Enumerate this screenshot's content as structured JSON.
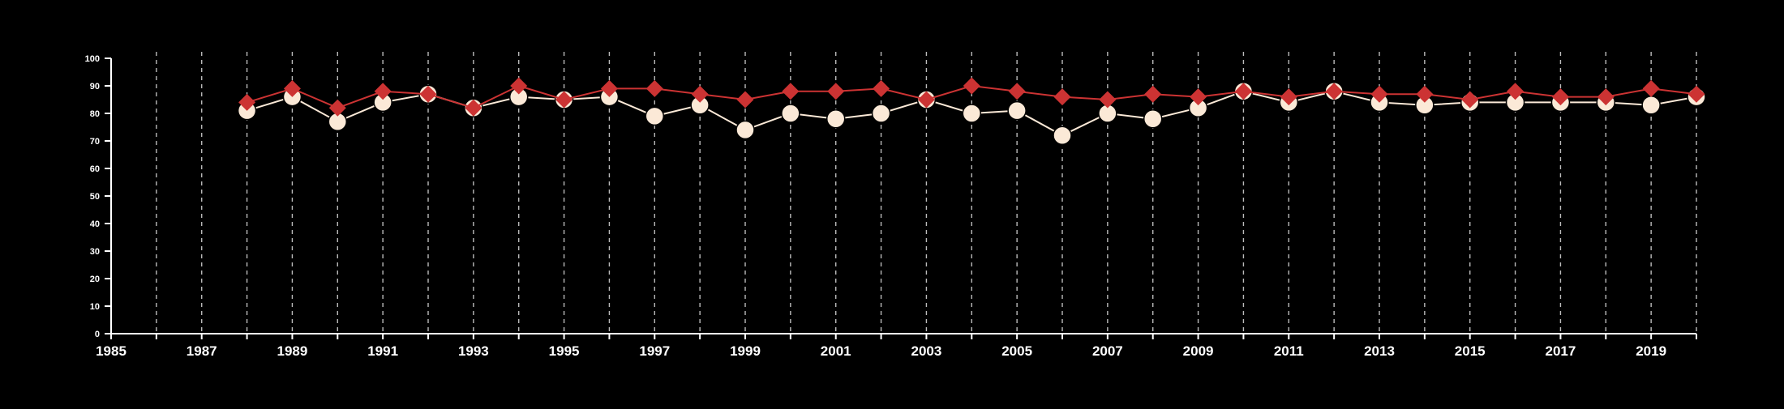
{
  "colors": {
    "background": "#000000",
    "axis": "#ffffff",
    "grid": "#bbbbbb",
    "series_a": "#cc3333",
    "series_b": "#fbe9d7"
  },
  "chart_data": {
    "type": "line",
    "grid": "vertical dashed",
    "xlim": [
      1985,
      2020
    ],
    "ylim": [
      0,
      100
    ],
    "x_ticks": [
      1985,
      1986,
      1987,
      1988,
      1989,
      1990,
      1991,
      1992,
      1993,
      1994,
      1995,
      1996,
      1997,
      1998,
      1999,
      2000,
      2001,
      2002,
      2003,
      2004,
      2005,
      2006,
      2007,
      2008,
      2009,
      2010,
      2011,
      2012,
      2013,
      2014,
      2015,
      2016,
      2017,
      2018,
      2019,
      2020
    ],
    "x_tick_labels": [
      "1985",
      "1987",
      "1989",
      "1991",
      "1993",
      "1995",
      "1997",
      "1999",
      "2001",
      "2003",
      "2005",
      "2007",
      "2009",
      "2011",
      "2013",
      "2015",
      "2017",
      "2019"
    ],
    "y_ticks": [
      0,
      10,
      20,
      30,
      40,
      50,
      60,
      70,
      80,
      90,
      100
    ],
    "y_tick_labels": [
      "0",
      "10",
      "20",
      "30",
      "40",
      "50",
      "60",
      "70",
      "80",
      "90",
      "100"
    ],
    "x": [
      1988,
      1989,
      1990,
      1991,
      1992,
      1993,
      1994,
      1995,
      1996,
      1997,
      1998,
      1999,
      2000,
      2001,
      2002,
      2003,
      2004,
      2005,
      2006,
      2007,
      2008,
      2009,
      2010,
      2011,
      2012,
      2013,
      2014,
      2015,
      2016,
      2017,
      2018,
      2019,
      2020
    ],
    "series": [
      {
        "marker": "diamond",
        "color": "#cc3333",
        "values": [
          84,
          89,
          82,
          88,
          87,
          82,
          90,
          85,
          89,
          89,
          87,
          85,
          88,
          88,
          89,
          85,
          90,
          88,
          86,
          85,
          87,
          86,
          88,
          86,
          88,
          87,
          87,
          85,
          88,
          86,
          86,
          89,
          87
        ]
      },
      {
        "marker": "circle",
        "color": "#fbe9d7",
        "values": [
          81,
          86,
          77,
          84,
          87,
          82,
          86,
          85,
          86,
          79,
          83,
          74,
          80,
          78,
          80,
          85,
          80,
          81,
          72,
          80,
          78,
          82,
          88,
          84,
          88,
          84,
          83,
          84,
          84,
          84,
          84,
          83,
          86
        ]
      }
    ]
  }
}
